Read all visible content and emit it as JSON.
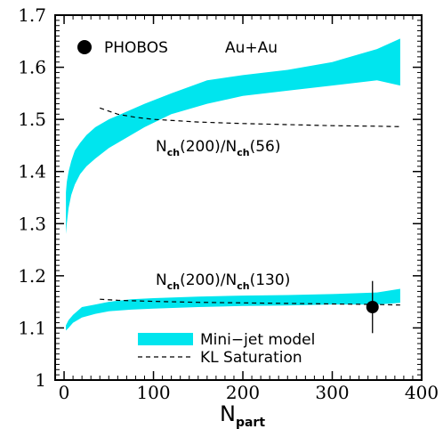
{
  "chart_data": {
    "type": "area",
    "xlabel": {
      "main": "N",
      "sub": "part"
    },
    "xlim": [
      -10,
      400
    ],
    "ylim": [
      1.0,
      1.7
    ],
    "xticks": [
      0,
      100,
      200,
      300,
      400
    ],
    "xtick_labels": [
      "0",
      "100",
      "200",
      "300",
      "400"
    ],
    "yticks": [
      1.0,
      1.1,
      1.2,
      1.3,
      1.4,
      1.5,
      1.6,
      1.7
    ],
    "ytick_labels": [
      "1",
      "1.1",
      "1.2",
      "1.3",
      "1.4",
      "1.5",
      "1.6",
      "1.7"
    ],
    "grid": false,
    "legend_position": "bottom-center",
    "annotations": {
      "experiment": "PHOBOS",
      "system": "Au+Au",
      "ratio_upper": {
        "n1": "N",
        "s1": "ch",
        "mid": "(200)/N",
        "s2": "ch",
        "tail": "(56)"
      },
      "ratio_lower": {
        "n1": "N",
        "s1": "ch",
        "mid": "(200)/N",
        "s2": "ch",
        "tail": "(130)"
      }
    },
    "colors": {
      "band": "#00e5ee",
      "line": "#000000",
      "point": "#000000"
    },
    "series": [
      {
        "name": "Mini−jet model",
        "kind": "band",
        "x": [
          2,
          3,
          5,
          8,
          12,
          18,
          25,
          35,
          50,
          70,
          90,
          120,
          160,
          200,
          250,
          300,
          350,
          376
        ],
        "upper": [
          1.36,
          1.38,
          1.4,
          1.42,
          1.44,
          1.455,
          1.47,
          1.485,
          1.5,
          1.515,
          1.53,
          1.55,
          1.575,
          1.585,
          1.595,
          1.61,
          1.635,
          1.655
        ],
        "lower": [
          1.28,
          1.3,
          1.33,
          1.355,
          1.375,
          1.395,
          1.41,
          1.425,
          1.445,
          1.465,
          1.485,
          1.51,
          1.53,
          1.545,
          1.555,
          1.565,
          1.575,
          1.565
        ]
      },
      {
        "name": "Mini−jet model",
        "kind": "band",
        "x": [
          2,
          5,
          10,
          20,
          35,
          50,
          75,
          100,
          150,
          200,
          250,
          300,
          350,
          376
        ],
        "upper": [
          1.105,
          1.115,
          1.125,
          1.14,
          1.145,
          1.15,
          1.155,
          1.157,
          1.16,
          1.162,
          1.163,
          1.165,
          1.168,
          1.175
        ],
        "lower": [
          1.095,
          1.1,
          1.11,
          1.12,
          1.127,
          1.132,
          1.135,
          1.137,
          1.14,
          1.142,
          1.143,
          1.145,
          1.145,
          1.148
        ]
      },
      {
        "name": "KL Saturation",
        "kind": "dashed",
        "x": [
          40,
          60,
          80,
          100,
          150,
          200,
          250,
          300,
          350,
          376
        ],
        "y": [
          1.522,
          1.51,
          1.504,
          1.5,
          1.495,
          1.492,
          1.49,
          1.488,
          1.487,
          1.486
        ]
      },
      {
        "name": "KL Saturation",
        "kind": "dashed",
        "x": [
          40,
          60,
          80,
          100,
          150,
          200,
          250,
          300,
          350,
          376
        ],
        "y": [
          1.155,
          1.153,
          1.152,
          1.151,
          1.149,
          1.148,
          1.147,
          1.146,
          1.145,
          1.144
        ]
      },
      {
        "name": "PHOBOS",
        "kind": "point",
        "x": [
          345
        ],
        "y": [
          1.14
        ],
        "yerr": [
          0.05
        ]
      }
    ],
    "legend": [
      {
        "label": "Mini−jet model",
        "kind": "band"
      },
      {
        "label": "KL Saturation",
        "kind": "dashed"
      }
    ]
  }
}
